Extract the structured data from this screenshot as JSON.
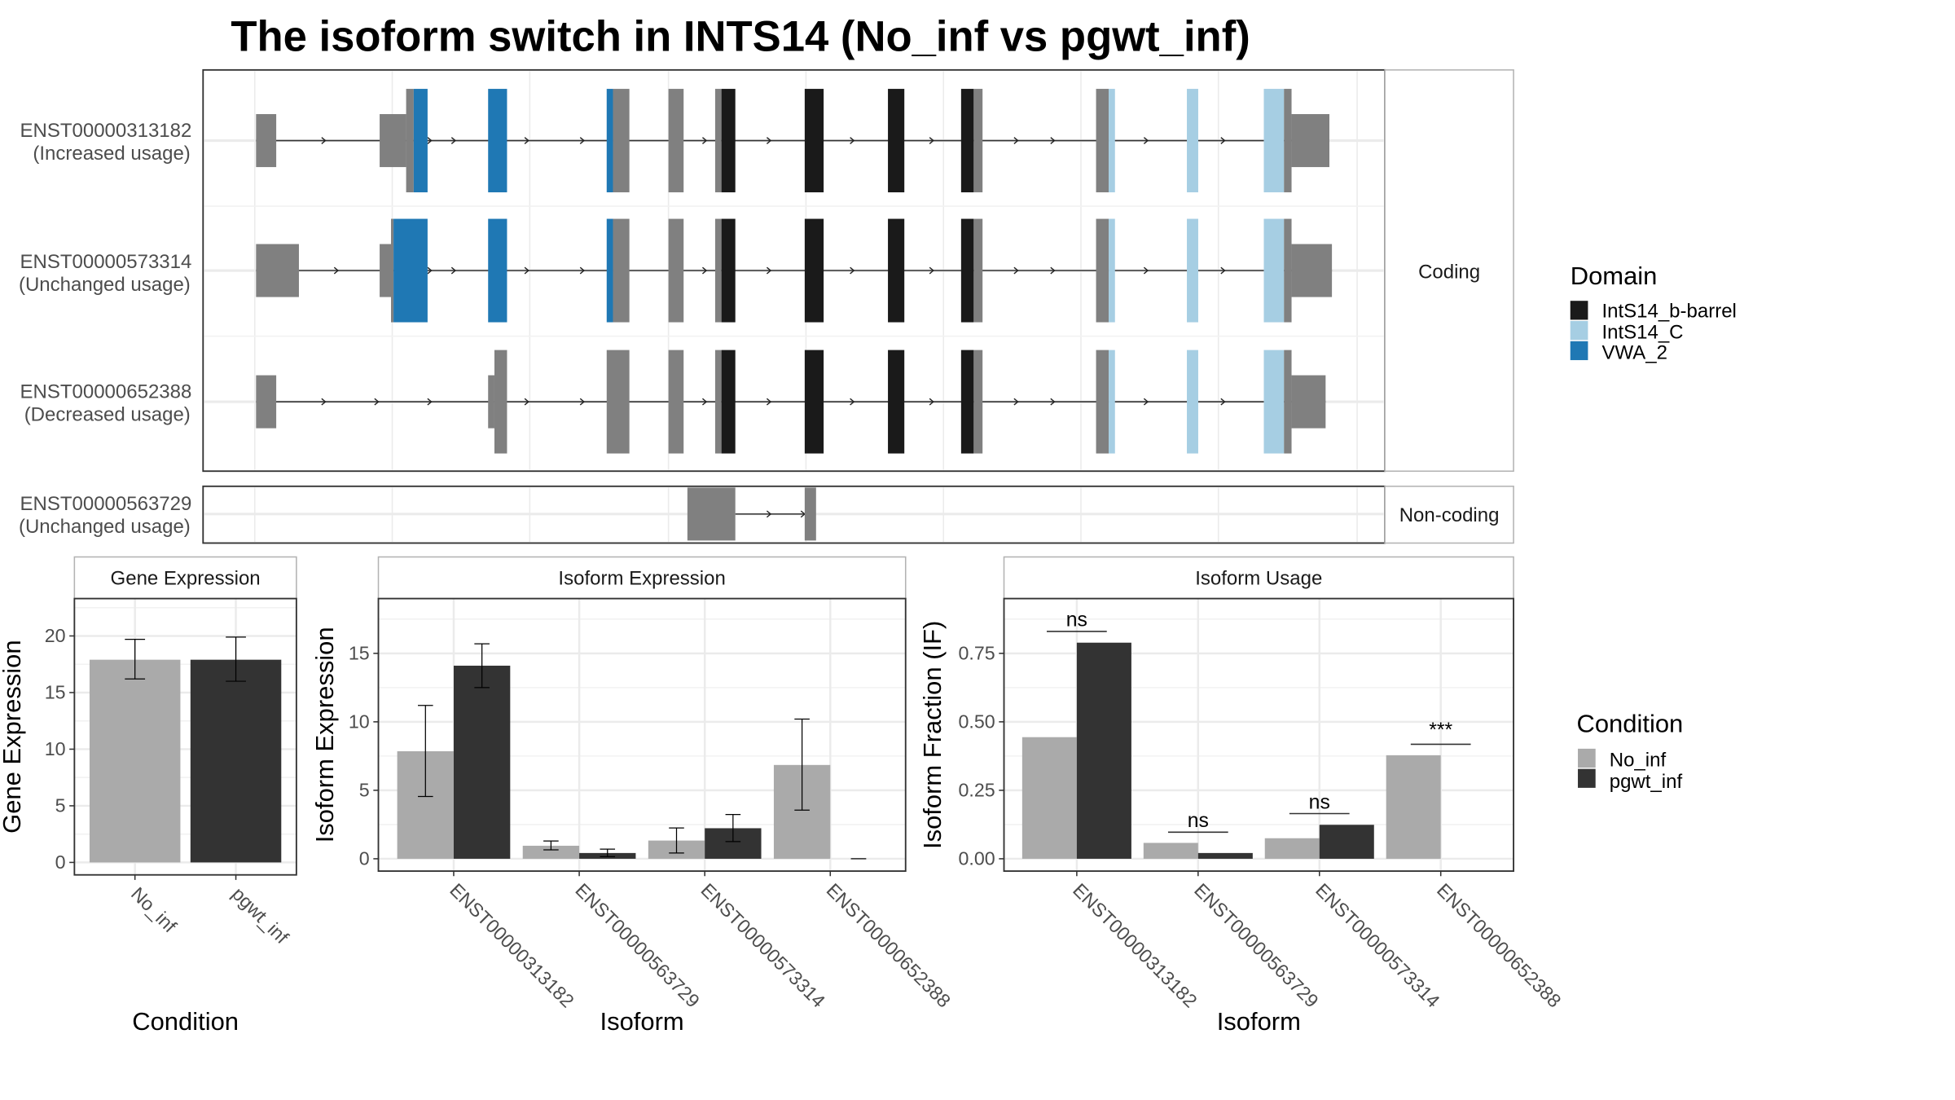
{
  "title": "The isoform switch in INTS14 (No_inf vs pgwt_inf)",
  "colors": {
    "utr": "#808080",
    "IntS14_b-barrel": "#1a1a1a",
    "IntS14_C": "#a6cee3",
    "VWA_2": "#1f78b4",
    "No_inf": "#aaaaaa",
    "pgwt_inf": "#333333",
    "grid": "#ebebeb"
  },
  "transcripts": {
    "coding_strip": "Coding",
    "noncoding_strip": "Non-coding",
    "rows": [
      {
        "id": "ENST00000313182",
        "usage": "(Increased usage)",
        "group": "coding"
      },
      {
        "id": "ENST00000573314",
        "usage": "(Unchanged usage)",
        "group": "coding"
      },
      {
        "id": "ENST00000652388",
        "usage": "(Decreased usage)",
        "group": "coding"
      },
      {
        "id": "ENST00000563729",
        "usage": "(Unchanged usage)",
        "group": "noncoding"
      }
    ]
  },
  "legends": {
    "domain": {
      "title": "Domain",
      "items": [
        "IntS14_b-barrel",
        "IntS14_C",
        "VWA_2"
      ]
    },
    "condition": {
      "title": "Condition",
      "items": [
        "No_inf",
        "pgwt_inf"
      ]
    }
  },
  "chart_data": [
    {
      "type": "bar",
      "title": "Gene Expression",
      "xlabel": "Condition",
      "ylabel": "Gene Expression",
      "categories": [
        "No_inf",
        "pgwt_inf"
      ],
      "values": [
        17.9,
        17.9
      ],
      "errors": [
        [
          16.2,
          19.7
        ],
        [
          16.0,
          19.9
        ]
      ],
      "yticks": [
        0,
        5,
        10,
        15,
        20
      ],
      "ylim": [
        -1.1,
        23.3
      ],
      "grid": true
    },
    {
      "type": "bar",
      "title": "Isoform Expression",
      "xlabel": "Isoform",
      "ylabel": "Isoform Expression",
      "categories": [
        "ENST00000313182",
        "ENST00000563729",
        "ENST00000573314",
        "ENST00000652388"
      ],
      "series": [
        {
          "name": "No_inf",
          "values": [
            7.85,
            0.95,
            1.33,
            6.85
          ],
          "errors": [
            [
              4.55,
              11.2
            ],
            [
              0.65,
              1.3
            ],
            [
              0.42,
              2.25
            ],
            [
              3.55,
              10.2
            ]
          ]
        },
        {
          "name": "pgwt_inf",
          "values": [
            14.1,
            0.42,
            2.23,
            0.0
          ],
          "errors": [
            [
              12.5,
              15.7
            ],
            [
              0.15,
              0.7
            ],
            [
              1.25,
              3.23
            ],
            [
              0.0,
              0.0
            ]
          ]
        }
      ],
      "yticks": [
        0,
        5,
        10,
        15
      ],
      "ylim": [
        -0.9,
        19.0
      ],
      "grid": true
    },
    {
      "type": "bar",
      "title": "Isoform Usage",
      "xlabel": "Isoform",
      "ylabel": "Isoform Fraction (IF)",
      "categories": [
        "ENST00000313182",
        "ENST00000563729",
        "ENST00000573314",
        "ENST00000652388"
      ],
      "series": [
        {
          "name": "No_inf",
          "values": [
            0.444,
            0.058,
            0.075,
            0.378
          ]
        },
        {
          "name": "pgwt_inf",
          "values": [
            0.789,
            0.021,
            0.124,
            0.0
          ]
        }
      ],
      "significance": [
        {
          "label": "ns",
          "y": 0.83
        },
        {
          "label": "ns",
          "y": 0.097
        },
        {
          "label": "ns",
          "y": 0.165
        },
        {
          "label": "***",
          "y": 0.418
        }
      ],
      "yticks": [
        0.0,
        0.25,
        0.5,
        0.75
      ],
      "yticklabels": [
        "0.00",
        "0.25",
        "0.50",
        "0.75"
      ],
      "ylim": [
        -0.045,
        0.95
      ],
      "grid": true
    }
  ]
}
